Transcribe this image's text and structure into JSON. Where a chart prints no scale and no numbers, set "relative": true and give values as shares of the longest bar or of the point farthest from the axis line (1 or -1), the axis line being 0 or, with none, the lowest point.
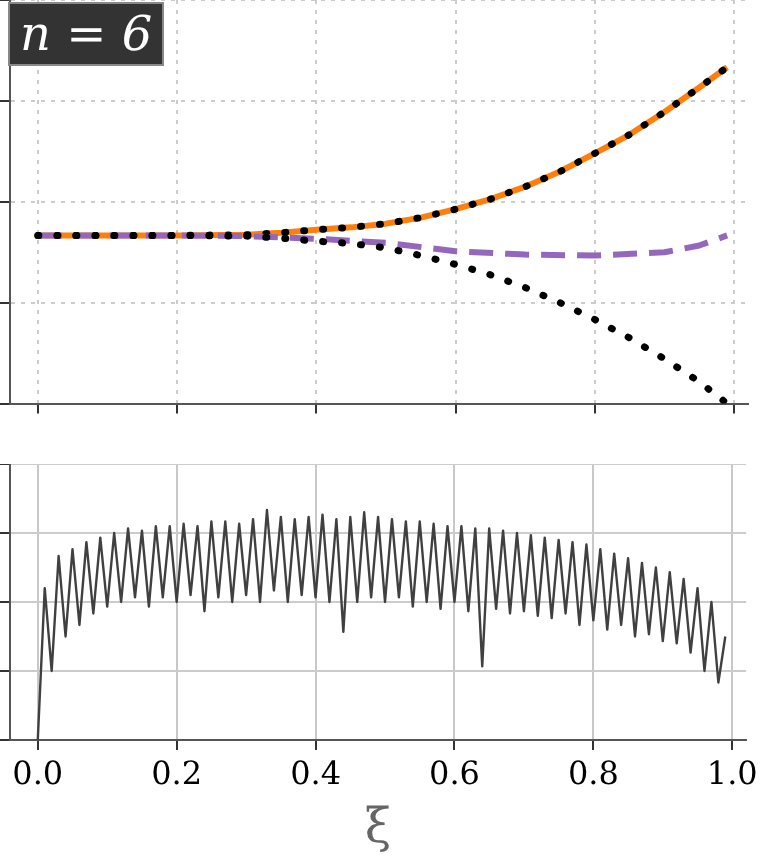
{
  "chart_data": [
    {
      "type": "line",
      "relative": true,
      "annotations": [
        "n = 6"
      ],
      "grid": true,
      "tick_labels": false,
      "xlim": [
        -0.04,
        1.02
      ],
      "xticks": [
        {
          "value": 0,
          "label": null
        },
        {
          "value": 0.2,
          "label": null
        },
        {
          "value": 0.4,
          "label": null
        },
        {
          "value": 0.6,
          "label": null
        },
        {
          "value": 0.8,
          "label": null
        },
        {
          "value": 1,
          "label": null
        }
      ],
      "series": [
        {
          "color": "#ff7f0e",
          "line_style": "solid",
          "x": [
            0,
            0.1,
            0.2,
            0.3,
            0.35,
            0.4,
            0.45,
            0.5,
            0.55,
            0.6,
            0.65,
            0.7,
            0.75,
            0.8,
            0.85,
            0.9,
            0.95,
            0.99
          ],
          "values": [
            0.5,
            0.5,
            0.5,
            0.502,
            0.508,
            0.517,
            0.524,
            0.535,
            0.553,
            0.578,
            0.608,
            0.645,
            0.69,
            0.744,
            0.8,
            0.867,
            0.94,
            1.0
          ]
        },
        {
          "color": "#000000",
          "line_style": "dotted",
          "x": [
            0,
            0.1,
            0.2,
            0.3,
            0.35,
            0.4,
            0.45,
            0.5,
            0.55,
            0.6,
            0.65,
            0.7,
            0.75,
            0.8,
            0.85,
            0.9,
            0.95,
            0.99
          ],
          "values": [
            0.5,
            0.5,
            0.5,
            0.502,
            0.508,
            0.517,
            0.524,
            0.535,
            0.553,
            0.578,
            0.608,
            0.645,
            0.69,
            0.744,
            0.8,
            0.867,
            0.94,
            1.0
          ]
        },
        {
          "color": "#9467bd",
          "line_style": "dashed",
          "x": [
            0,
            0.1,
            0.2,
            0.3,
            0.4,
            0.5,
            0.6,
            0.7,
            0.8,
            0.9,
            0.95,
            0.99
          ],
          "values": [
            0.5,
            0.5,
            0.5,
            0.498,
            0.49,
            0.478,
            0.453,
            0.443,
            0.44,
            0.45,
            0.47,
            0.5
          ]
        },
        {
          "color": "#000000",
          "line_style": "dotted",
          "x": [
            0,
            0.1,
            0.2,
            0.3,
            0.35,
            0.4,
            0.45,
            0.5,
            0.55,
            0.6,
            0.65,
            0.7,
            0.75,
            0.8,
            0.85,
            0.9,
            0.95,
            0.99
          ],
          "values": [
            0.5,
            0.5,
            0.5,
            0.498,
            0.492,
            0.483,
            0.476,
            0.463,
            0.44,
            0.414,
            0.383,
            0.345,
            0.3,
            0.25,
            0.195,
            0.133,
            0.065,
            0.0
          ]
        }
      ]
    },
    {
      "type": "line",
      "relative": true,
      "xlabel": "ξ",
      "grid": true,
      "tick_labels": "x",
      "xlim": [
        -0.04,
        1.02
      ],
      "xticks": [
        {
          "value": 0,
          "label": "0.0"
        },
        {
          "value": 0.2,
          "label": "0.2"
        },
        {
          "value": 0.4,
          "label": "0.4"
        },
        {
          "value": 0.6,
          "label": "0.6"
        },
        {
          "value": 0.8,
          "label": "0.8"
        },
        {
          "value": 1,
          "label": "1.0"
        }
      ],
      "series": [
        {
          "color": "#404040",
          "line_style": "solid",
          "x": [
            0,
            0.01,
            0.02,
            0.03,
            0.04,
            0.05,
            0.06,
            0.07,
            0.08,
            0.09,
            0.1,
            0.11,
            0.12,
            0.13,
            0.14,
            0.15,
            0.16,
            0.17,
            0.18,
            0.19,
            0.2,
            0.21,
            0.22,
            0.23,
            0.24,
            0.25,
            0.26,
            0.27,
            0.28,
            0.29,
            0.3,
            0.31,
            0.32,
            0.33,
            0.34,
            0.35,
            0.36,
            0.37,
            0.38,
            0.39,
            0.4,
            0.41,
            0.42,
            0.43,
            0.44,
            0.45,
            0.46,
            0.47,
            0.48,
            0.49,
            0.5,
            0.51,
            0.52,
            0.53,
            0.54,
            0.55,
            0.56,
            0.57,
            0.58,
            0.59,
            0.6,
            0.61,
            0.62,
            0.63,
            0.64,
            0.65,
            0.66,
            0.67,
            0.68,
            0.69,
            0.7,
            0.71,
            0.72,
            0.73,
            0.74,
            0.75,
            0.76,
            0.77,
            0.78,
            0.79,
            0.8,
            0.81,
            0.82,
            0.83,
            0.84,
            0.85,
            0.86,
            0.87,
            0.88,
            0.89,
            0.9,
            0.91,
            0.92,
            0.93,
            0.94,
            0.95,
            0.96,
            0.97,
            0.98,
            0.99
          ],
          "values": [
            0,
            0.66,
            0.3,
            0.8,
            0.45,
            0.83,
            0.5,
            0.86,
            0.55,
            0.88,
            0.58,
            0.9,
            0.6,
            0.92,
            0.62,
            0.91,
            0.58,
            0.93,
            0.62,
            0.93,
            0.6,
            0.94,
            0.63,
            0.93,
            0.56,
            0.95,
            0.62,
            0.95,
            0.6,
            0.94,
            0.63,
            0.96,
            0.6,
            1.0,
            0.65,
            0.97,
            0.6,
            0.96,
            0.63,
            0.97,
            0.62,
            0.98,
            0.6,
            0.96,
            0.47,
            0.97,
            0.6,
            0.99,
            0.62,
            0.97,
            0.6,
            0.96,
            0.62,
            0.95,
            0.58,
            0.95,
            0.6,
            0.94,
            0.57,
            0.93,
            0.6,
            0.93,
            0.56,
            0.92,
            0.32,
            0.92,
            0.57,
            0.91,
            0.55,
            0.9,
            0.56,
            0.89,
            0.54,
            0.88,
            0.53,
            0.87,
            0.55,
            0.86,
            0.5,
            0.85,
            0.52,
            0.83,
            0.48,
            0.81,
            0.5,
            0.79,
            0.45,
            0.77,
            0.46,
            0.75,
            0.43,
            0.73,
            0.42,
            0.7,
            0.38,
            0.66,
            0.3,
            0.6,
            0.25,
            0.45
          ]
        }
      ]
    }
  ]
}
